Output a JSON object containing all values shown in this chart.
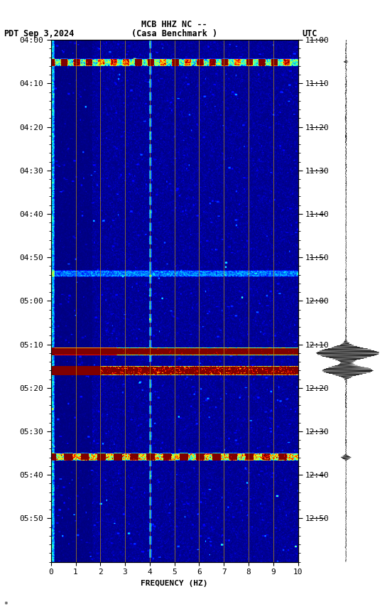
{
  "title_line1": "MCB HHZ NC --",
  "title_line2": "(Casa Benchmark )",
  "left_label": "PDT",
  "date_label": "Sep 3,2024",
  "right_label": "UTC",
  "xlabel": "FREQUENCY (HZ)",
  "freq_min": 0,
  "freq_max": 10,
  "freq_ticks": [
    0,
    1,
    2,
    3,
    4,
    5,
    6,
    7,
    8,
    9,
    10
  ],
  "left_ticks_pdt": [
    "04:00",
    "04:10",
    "04:20",
    "04:30",
    "04:40",
    "04:50",
    "05:00",
    "05:10",
    "05:20",
    "05:30",
    "05:40",
    "05:50"
  ],
  "right_ticks_utc": [
    "11:00",
    "11:10",
    "11:20",
    "11:30",
    "11:40",
    "11:50",
    "12:00",
    "12:10",
    "12:20",
    "12:30",
    "12:40",
    "12:50"
  ],
  "background_color": "#ffffff",
  "fig_width": 5.52,
  "fig_height": 8.64,
  "grid_color": "#b8860b",
  "grid_alpha": 0.7,
  "vline_color": "yellow",
  "vline_alpha": 0.5
}
